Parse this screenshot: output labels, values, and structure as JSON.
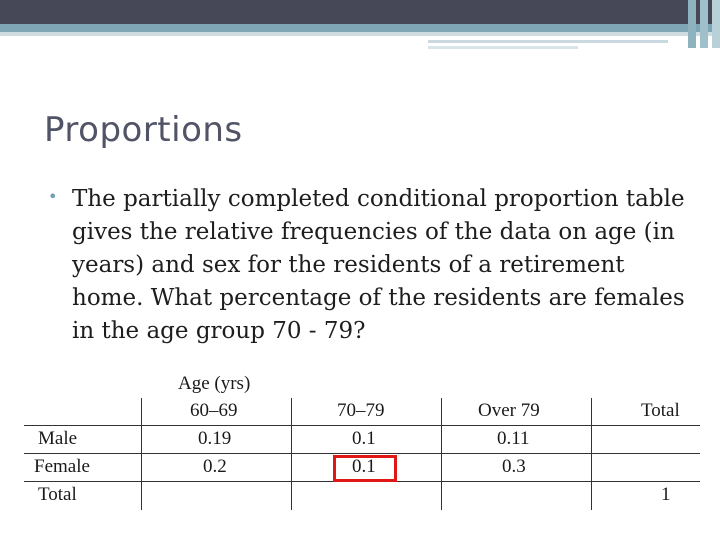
{
  "slide": {
    "title": "Proportions",
    "bullet": "The partially completed conditional proportion table gives the relative frequencies of the data on age (in years) and sex for the residents of a retirement home. What percentage of the residents are females in the age group 70 - 79?"
  },
  "table": {
    "group_header": "Age (yrs)",
    "columns": [
      "60–69",
      "70–79",
      "Over  79",
      "Total"
    ],
    "rows": [
      {
        "label": "Male",
        "values": [
          "0.19",
          "0.1",
          "0.11",
          ""
        ]
      },
      {
        "label": "Female",
        "values": [
          "0.2",
          "0.1",
          "0.3",
          ""
        ]
      },
      {
        "label": "Total",
        "values": [
          "",
          "",
          "",
          "1"
        ]
      }
    ],
    "highlight_color": "#e01717"
  }
}
